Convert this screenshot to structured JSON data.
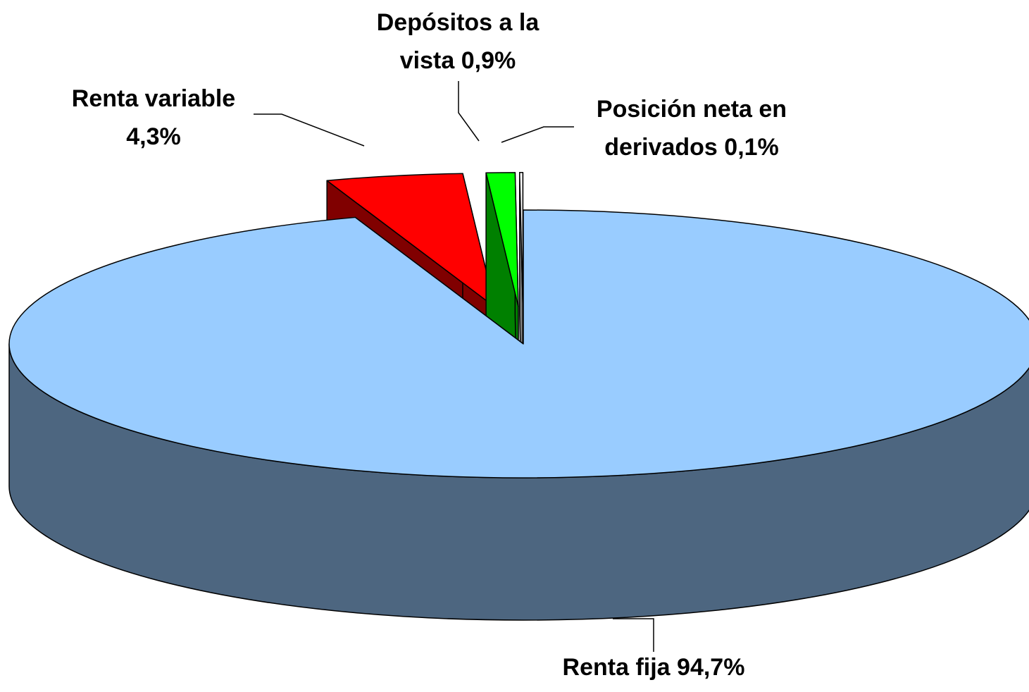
{
  "chart_data": {
    "type": "pie3d",
    "categories": [
      "Renta fija",
      "Renta variable",
      "Depósitos a la vista",
      "Posición neta en derivados"
    ],
    "values": [
      94.7,
      4.3,
      0.9,
      0.1
    ],
    "value_labels": [
      "94,7%",
      "4,3%",
      "0,9%",
      "0,1%"
    ],
    "colors": [
      "#99ccff",
      "#ff0000",
      "#00ff00",
      "#ffffff"
    ]
  }
}
